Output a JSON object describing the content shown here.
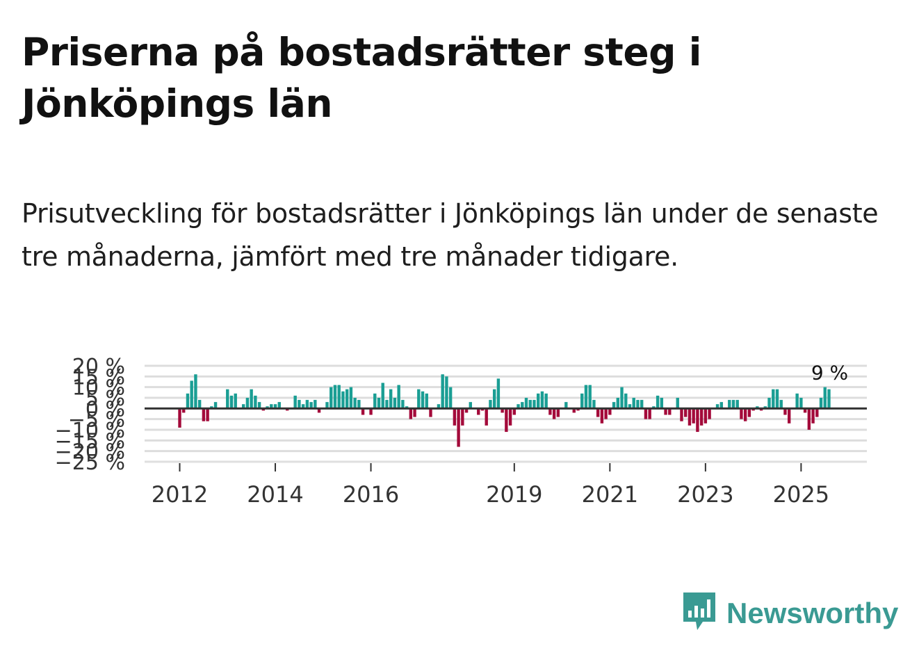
{
  "title": "Priserna på bostadsrätter steg i Jönköpings län",
  "subtitle": "Prisutveckling för bostadsrätter i Jönköpings län under de senaste tre månaderna, jämfört med tre månader tidigare.",
  "brand": {
    "name": "Newsworthy",
    "icon": "newsworthy-logo-icon"
  },
  "colors": {
    "positive": "#1a9e94",
    "negative": "#a30a3a",
    "zero_line": "#333333",
    "grid": "#dddddd"
  },
  "chart_data": {
    "type": "bar",
    "title": "",
    "xlabel": "",
    "ylabel": "",
    "ylim": [
      -25,
      20
    ],
    "y_ticks": [
      20,
      15,
      10,
      5,
      0,
      -5,
      -10,
      -15,
      -20,
      -25
    ],
    "y_tick_labels": [
      "20 %",
      "15 %",
      "10 %",
      "5 %",
      "0 %",
      "−5 %",
      "−10 %",
      "−15 %",
      "−20 %",
      "−25 %"
    ],
    "x_tick_labels": [
      {
        "label": "2012",
        "index": 0
      },
      {
        "label": "2014",
        "index": 24
      },
      {
        "label": "2016",
        "index": 48
      },
      {
        "label": "2019",
        "index": 84
      },
      {
        "label": "2021",
        "index": 108
      },
      {
        "label": "2023",
        "index": 132
      },
      {
        "label": "2025",
        "index": 156
      }
    ],
    "start": "2012-01",
    "last_value_label": "9 %",
    "values": [
      -9,
      -2,
      7,
      13,
      16,
      4,
      -6,
      -6,
      1,
      3,
      0,
      0,
      9,
      6,
      7,
      0,
      2,
      5,
      9,
      6,
      3,
      -1,
      1,
      2,
      2,
      3,
      0,
      -1,
      0,
      6,
      4,
      2,
      4,
      3,
      4,
      -2,
      0,
      3,
      10,
      11,
      11,
      8,
      9,
      10,
      5,
      4,
      -3,
      0,
      -3,
      7,
      5,
      12,
      4,
      9,
      5,
      11,
      4,
      1,
      -5,
      -4,
      9,
      8,
      7,
      -4,
      0,
      2,
      16,
      15,
      10,
      -8,
      -18,
      -8,
      -2,
      3,
      0,
      -3,
      -1,
      -8,
      4,
      9,
      14,
      -2,
      -11,
      -8,
      -3,
      2,
      3,
      5,
      4,
      4,
      7,
      8,
      7,
      -3,
      -5,
      -4,
      0,
      3,
      0,
      -2,
      -1,
      7,
      11,
      11,
      4,
      -4,
      -7,
      -5,
      -3,
      3,
      5,
      10,
      7,
      2,
      5,
      4,
      4,
      -5,
      -5,
      1,
      6,
      5,
      -3,
      -3,
      0,
      5,
      -6,
      -4,
      -8,
      -7,
      -11,
      -8,
      -7,
      -5,
      0,
      2,
      3,
      0,
      4,
      4,
      4,
      -5,
      -6,
      -4,
      -1,
      1,
      -1,
      1,
      5,
      9,
      9,
      4,
      -3,
      -7,
      0,
      7,
      5,
      -2,
      -10,
      -7,
      -4,
      5,
      10,
      9
    ]
  }
}
